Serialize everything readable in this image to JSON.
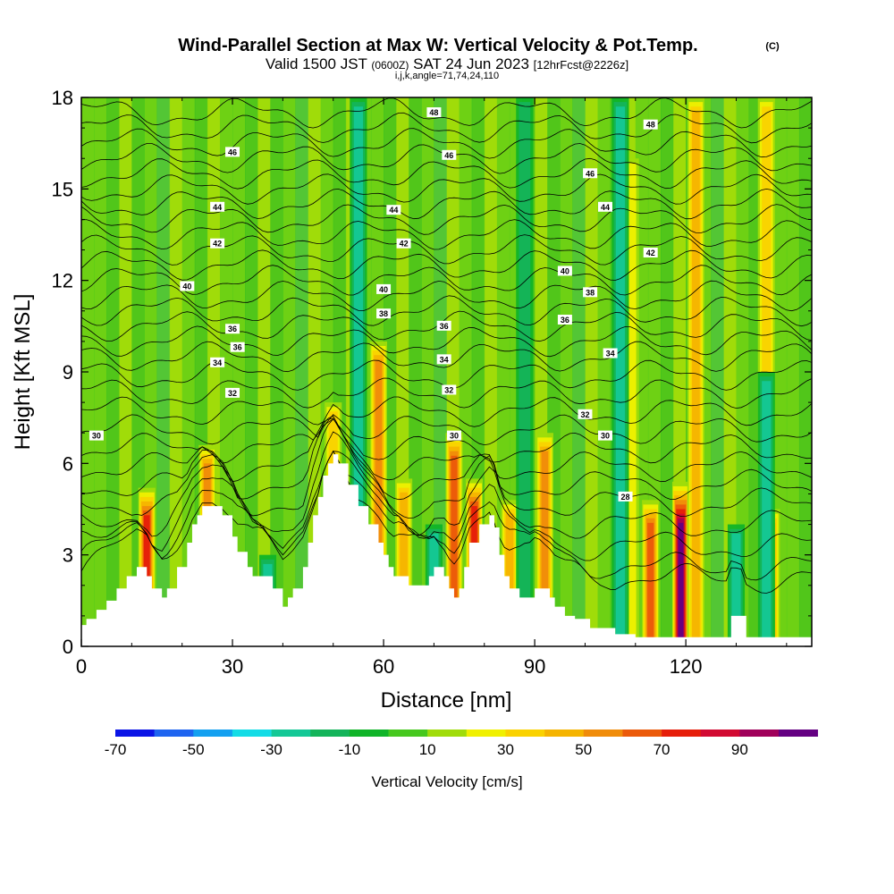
{
  "header": {
    "title": "Wind-Parallel Section at Max W: Vertical Velocity & Pot.Temp.",
    "copyright": "(C)",
    "valid_a": "Valid 1500 JST",
    "valid_b": "(0600Z)",
    "valid_c": "SAT 24 Jun 2023",
    "valid_d": "[12hrFcst@2226z]",
    "indices": "i,j,k,angle=71,74,24,110"
  },
  "chart_data": {
    "type": "heatmap",
    "xlabel": "Distance [nm]",
    "ylabel": "Height [Kft MSL]",
    "xlim": [
      0,
      145
    ],
    "ylim": [
      0,
      18
    ],
    "x_ticks": [
      0,
      30,
      60,
      90,
      120
    ],
    "y_ticks": [
      0,
      3,
      6,
      9,
      12,
      15,
      18
    ],
    "colorbar": {
      "label": "Vertical Velocity [cm/s]",
      "tick_labels": [
        "-70",
        "-50",
        "-30",
        "-10",
        "10",
        "30",
        "50",
        "70",
        "90"
      ],
      "bounds": [
        -70,
        100
      ],
      "colors": [
        "#0a14e6",
        "#1e64f0",
        "#14a0f0",
        "#14dce6",
        "#14c896",
        "#14b45a",
        "#10b428",
        "#46c81e",
        "#a0dc0a",
        "#f0f000",
        "#fad200",
        "#f5b400",
        "#f08c0a",
        "#eb5a0a",
        "#e61e0a",
        "#d20a32",
        "#a0005a",
        "#640082"
      ]
    },
    "terrain_kft": {
      "x": [
        0,
        1,
        3,
        5,
        7,
        9,
        11,
        13,
        14,
        16,
        17,
        19,
        21,
        22,
        23,
        24,
        26,
        28,
        30,
        31,
        33,
        34,
        36,
        38,
        40,
        41,
        42,
        44,
        45,
        46,
        47,
        48,
        49,
        50,
        51,
        53,
        55,
        57,
        59,
        60,
        61,
        62,
        63,
        65,
        67,
        69,
        70,
        72,
        73,
        74,
        75,
        76,
        77,
        79,
        81,
        82,
        83,
        84,
        85,
        87,
        88,
        89,
        90,
        91,
        93,
        94,
        96,
        98,
        101,
        104,
        106,
        108,
        110,
        112,
        115,
        120,
        125,
        128,
        129,
        131,
        132,
        134,
        136,
        140,
        145
      ],
      "height": [
        0.7,
        0.9,
        1.2,
        1.5,
        1.9,
        2.3,
        2.6,
        2.3,
        1.9,
        1.6,
        1.9,
        2.6,
        3.4,
        4.0,
        4.3,
        4.6,
        4.6,
        4.3,
        3.6,
        3.1,
        2.6,
        2.3,
        2.3,
        1.9,
        1.3,
        1.6,
        1.9,
        2.6,
        3.4,
        4.3,
        4.9,
        5.6,
        6.0,
        6.3,
        6.0,
        5.3,
        4.6,
        4.0,
        3.4,
        3.0,
        2.6,
        2.3,
        2.3,
        2.0,
        2.0,
        2.3,
        2.6,
        2.3,
        1.9,
        1.6,
        1.9,
        2.6,
        3.4,
        4.0,
        4.3,
        3.9,
        3.0,
        2.3,
        1.9,
        1.6,
        1.6,
        1.6,
        1.9,
        1.9,
        1.6,
        1.3,
        1.0,
        0.9,
        0.6,
        0.6,
        0.4,
        0.4,
        0.3,
        0.3,
        0.3,
        0.3,
        0.3,
        0.3,
        1.0,
        1.0,
        0.3,
        0.3,
        0.3,
        0.3,
        0.3
      ]
    },
    "updraft_columns": [
      {
        "x": 13,
        "ytop": 5.2,
        "w": 70
      },
      {
        "x": 25,
        "ytop": 6.6,
        "w": 50
      },
      {
        "x": 50,
        "ytop": 8.0,
        "w": 30
      },
      {
        "x": 59,
        "ytop": 10.0,
        "w": 45
      },
      {
        "x": 64,
        "ytop": 5.5,
        "w": 35
      },
      {
        "x": 74,
        "ytop": 7.0,
        "w": 55
      },
      {
        "x": 78,
        "ytop": 5.5,
        "w": 70
      },
      {
        "x": 85,
        "ytop": 4.8,
        "w": 35
      },
      {
        "x": 92,
        "ytop": 7.0,
        "w": 50
      },
      {
        "x": 109,
        "ytop": 16.0,
        "w": 20
      },
      {
        "x": 113,
        "ytop": 4.8,
        "w": 60
      },
      {
        "x": 119,
        "ytop": 5.4,
        "w": 95
      },
      {
        "x": 122,
        "ytop": 18.0,
        "w": 40
      },
      {
        "x": 137,
        "ytop": 4.5,
        "w": 40
      },
      {
        "x": 136,
        "ytop": 18.0,
        "w": 30
      }
    ],
    "downdraft_columns": [
      {
        "x": 37,
        "ytop": 3.0,
        "w": -30
      },
      {
        "x": 55,
        "ytop": 18.0,
        "w": -25
      },
      {
        "x": 70,
        "ytop": 4.0,
        "w": -30
      },
      {
        "x": 88,
        "ytop": 18.0,
        "w": -15
      },
      {
        "x": 107,
        "ytop": 18.0,
        "w": -25
      },
      {
        "x": 130,
        "ytop": 4.0,
        "w": -30
      },
      {
        "x": 136,
        "ytop": 9.0,
        "w": -25
      }
    ],
    "isentropes": {
      "levels_kft": [
        1.8,
        2.6,
        3.3,
        4.0,
        4.7,
        5.3,
        5.9,
        6.5,
        7.1,
        7.7,
        8.3,
        8.9,
        9.5,
        10.0,
        10.5,
        11.0,
        11.5,
        12.0,
        12.5,
        13.0,
        13.5,
        14.0,
        14.5,
        15.0,
        15.5,
        16.0,
        16.5,
        17.0,
        17.5
      ],
      "labels": [
        {
          "text": "30",
          "x": 3,
          "y": 6.9
        },
        {
          "text": "32",
          "x": 30,
          "y": 8.3
        },
        {
          "text": "34",
          "x": 27,
          "y": 9.3
        },
        {
          "text": "36",
          "x": 31,
          "y": 9.8
        },
        {
          "text": "36",
          "x": 30,
          "y": 10.4
        },
        {
          "text": "40",
          "x": 21,
          "y": 11.8
        },
        {
          "text": "42",
          "x": 27,
          "y": 13.2
        },
        {
          "text": "44",
          "x": 27,
          "y": 14.4
        },
        {
          "text": "46",
          "x": 30,
          "y": 16.2
        },
        {
          "text": "40",
          "x": 60,
          "y": 11.7
        },
        {
          "text": "38",
          "x": 60,
          "y": 10.9
        },
        {
          "text": "42",
          "x": 64,
          "y": 13.2
        },
        {
          "text": "44",
          "x": 62,
          "y": 14.3
        },
        {
          "text": "36",
          "x": 72,
          "y": 10.5
        },
        {
          "text": "34",
          "x": 72,
          "y": 9.4
        },
        {
          "text": "32",
          "x": 73,
          "y": 8.4
        },
        {
          "text": "30",
          "x": 74,
          "y": 6.9
        },
        {
          "text": "46",
          "x": 73,
          "y": 16.1
        },
        {
          "text": "48",
          "x": 70,
          "y": 17.5
        },
        {
          "text": "40",
          "x": 96,
          "y": 12.3
        },
        {
          "text": "38",
          "x": 101,
          "y": 11.6
        },
        {
          "text": "36",
          "x": 96,
          "y": 10.7
        },
        {
          "text": "34",
          "x": 105,
          "y": 9.6
        },
        {
          "text": "32",
          "x": 100,
          "y": 7.6
        },
        {
          "text": "30",
          "x": 104,
          "y": 6.9
        },
        {
          "text": "28",
          "x": 108,
          "y": 4.9
        },
        {
          "text": "46",
          "x": 101,
          "y": 15.5
        },
        {
          "text": "44",
          "x": 104,
          "y": 14.4
        },
        {
          "text": "42",
          "x": 113,
          "y": 12.9
        },
        {
          "text": "48",
          "x": 113,
          "y": 17.1
        }
      ]
    }
  }
}
